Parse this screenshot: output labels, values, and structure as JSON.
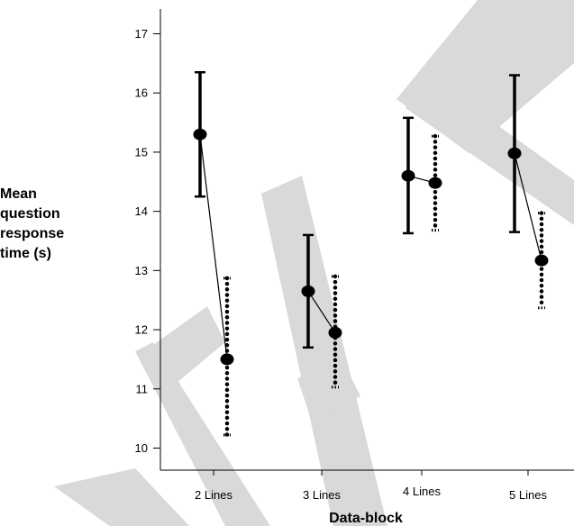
{
  "chart_data": {
    "type": "scatter",
    "title": "",
    "xlabel": "Data-block",
    "ylabel": [
      "Mean",
      "question",
      "response",
      "time (s)"
    ],
    "categories": [
      "2 Lines",
      "3 Lines",
      "4 Lines",
      "5 Lines"
    ],
    "ylim": [
      9.7,
      17.4
    ],
    "yticks": [
      10,
      11,
      12,
      13,
      14,
      15,
      16,
      17
    ],
    "grid": false,
    "legend": "none",
    "watermark": "DRAFT",
    "colors": {
      "marks": "#000000",
      "watermark": "#d9d9d9"
    },
    "series": [
      {
        "style": "solid",
        "values": [
          15.3,
          12.65,
          14.6,
          14.98
        ],
        "lower": [
          14.25,
          11.7,
          13.63,
          13.65
        ],
        "upper": [
          16.35,
          13.6,
          15.58,
          16.3
        ]
      },
      {
        "style": "dotted",
        "values": [
          11.5,
          11.95,
          14.48,
          13.17
        ],
        "lower": [
          10.22,
          11.03,
          13.68,
          12.37
        ],
        "upper": [
          12.87,
          12.9,
          15.27,
          13.97
        ]
      }
    ]
  }
}
